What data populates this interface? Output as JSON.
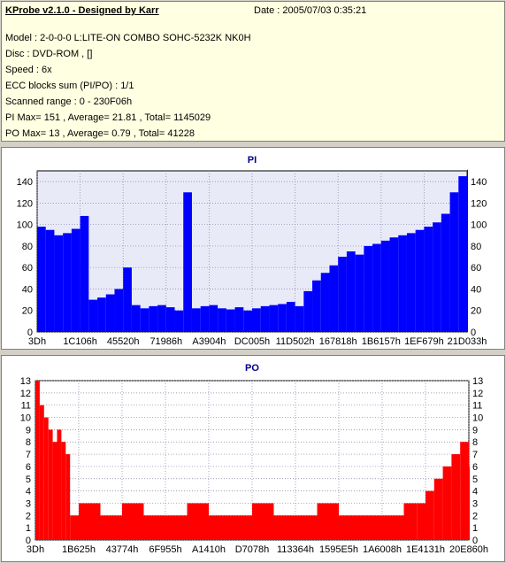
{
  "info": {
    "title": "KProbe v2.1.0 - Designed by Karr",
    "date": "Date : 2005/07/03 0:35:21",
    "lines": [
      "Model : 2-0-0-0 L:LITE-ON COMBO SOHC-5232K NK0H",
      "Disc : DVD-ROM ,  []",
      "Speed : 6x",
      "ECC blocks sum (PI/PO) : 1/1",
      "Scanned range : 0 - 230F06h",
      "PI Max= 151 , Average= 21.81 , Total= 1145029",
      "PO Max= 13 , Average= 0.79 , Total= 41228"
    ]
  },
  "chart_data": [
    {
      "type": "bar",
      "title": "PI",
      "color": "#0000ff",
      "plot_bg": "#e8eaf8",
      "ylim": [
        0,
        150
      ],
      "yticks": [
        0,
        20,
        40,
        60,
        80,
        100,
        120,
        140
      ],
      "xlabels": [
        "3Dh",
        "1C106h",
        "45520h",
        "71986h",
        "A3904h",
        "DC005h",
        "11D502h",
        "167818h",
        "1B6157h",
        "1EF679h",
        "21D033h"
      ],
      "x": [
        0,
        2,
        4,
        6,
        8,
        10,
        12,
        14,
        16,
        18,
        20,
        22,
        24,
        26,
        28,
        30,
        32,
        34,
        36,
        38,
        40,
        42,
        44,
        46,
        48,
        50,
        52,
        54,
        56,
        58,
        60,
        62,
        64,
        66,
        68,
        70,
        72,
        74,
        76,
        78,
        80,
        82,
        84,
        86,
        88,
        90,
        92,
        94,
        96,
        98,
        100
      ],
      "values": [
        98,
        95,
        90,
        92,
        96,
        108,
        30,
        32,
        35,
        40,
        60,
        25,
        22,
        24,
        25,
        23,
        20,
        130,
        22,
        24,
        25,
        22,
        21,
        23,
        20,
        22,
        24,
        25,
        26,
        28,
        24,
        38,
        48,
        55,
        62,
        70,
        75,
        72,
        80,
        82,
        85,
        88,
        90,
        92,
        95,
        98,
        102,
        110,
        130,
        145,
        151
      ]
    },
    {
      "type": "bar",
      "title": "PO",
      "color": "#ff0000",
      "plot_bg": "#ffffff",
      "ylim": [
        0,
        13
      ],
      "yticks": [
        0,
        1,
        2,
        3,
        4,
        5,
        6,
        7,
        8,
        9,
        10,
        11,
        12,
        13
      ],
      "xlabels": [
        "3Dh",
        "1B625h",
        "43774h",
        "6F955h",
        "A1410h",
        "D7078h",
        "113364h",
        "1595E5h",
        "1A6008h",
        "1E4131h",
        "20E860h"
      ],
      "x": [
        0,
        1,
        2,
        3,
        4,
        5,
        6,
        7,
        8,
        10,
        15,
        20,
        25,
        30,
        35,
        40,
        45,
        50,
        55,
        60,
        65,
        70,
        75,
        80,
        85,
        88,
        90,
        92,
        94,
        96,
        98,
        100
      ],
      "values": [
        13,
        11,
        10,
        9,
        8,
        9,
        8,
        7,
        2,
        3,
        2,
        3,
        2,
        2,
        3,
        2,
        2,
        3,
        2,
        2,
        3,
        2,
        2,
        2,
        3,
        3,
        4,
        5,
        6,
        7,
        8,
        6
      ]
    }
  ]
}
